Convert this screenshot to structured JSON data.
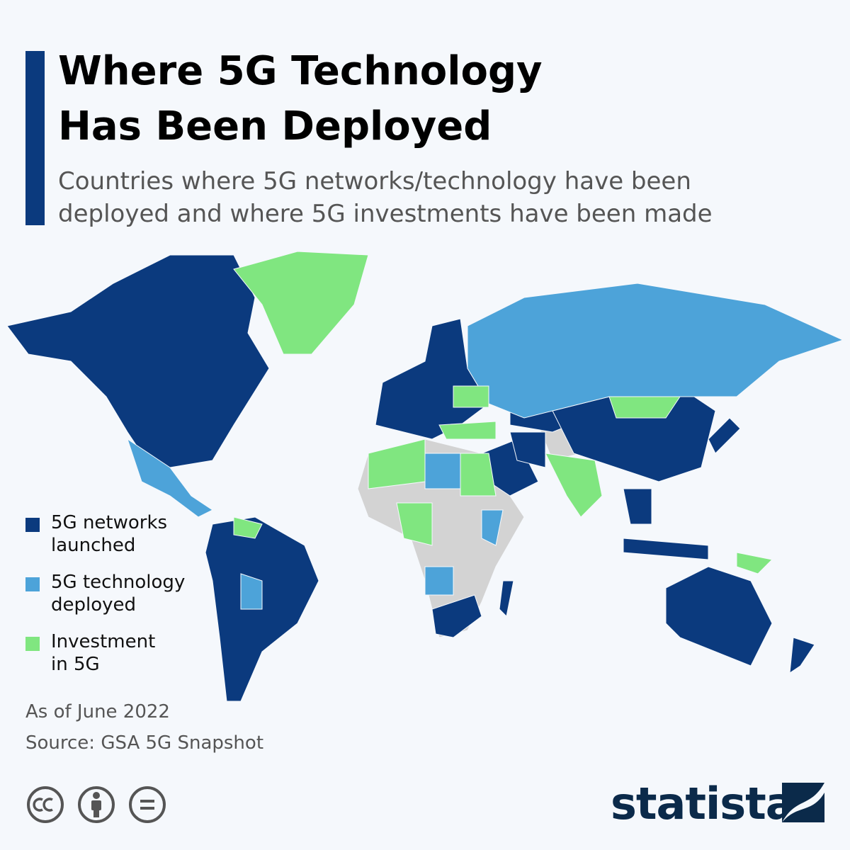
{
  "header": {
    "title_lines": [
      "Where 5G Technology",
      "Has Been Deployed"
    ],
    "subtitle_lines": [
      "Countries where 5G networks/technology have been",
      "deployed and where 5G investments have been made"
    ]
  },
  "legend": [
    {
      "label_lines": [
        "5G networks",
        "launched"
      ],
      "color": "#0b3a7e"
    },
    {
      "label_lines": [
        "5G technology",
        "deployed"
      ],
      "color": "#4da3d9"
    },
    {
      "label_lines": [
        "Investment",
        "in 5G"
      ],
      "color": "#80e680"
    }
  ],
  "footer": {
    "note": "As of June 2022",
    "source": "Source: GSA 5G Snapshot",
    "brand": "statista"
  }
}
